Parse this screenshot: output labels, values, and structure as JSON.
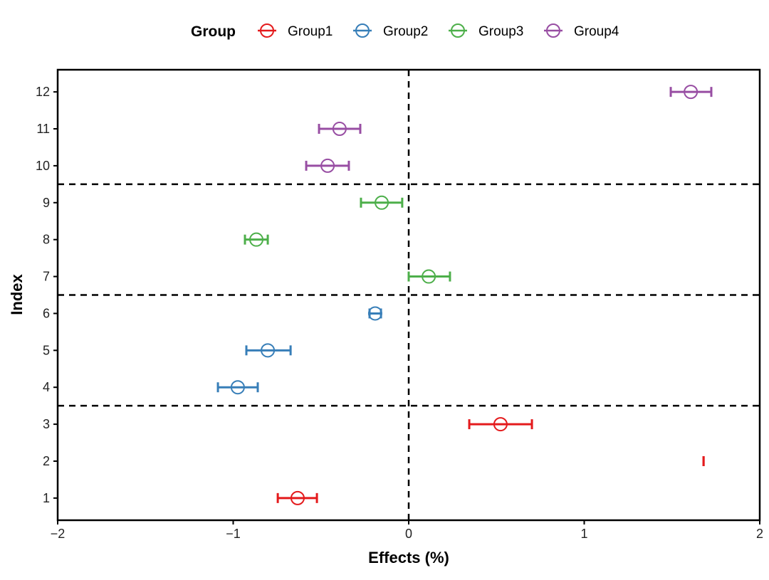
{
  "chart_data": {
    "type": "scatter",
    "subtype": "point-range / forest plot",
    "xlabel": "Effects (%)",
    "ylabel": "Index",
    "xlim": [
      -2,
      2
    ],
    "ylim": [
      0.4,
      12.6
    ],
    "xticks": [
      "−2",
      "−1",
      "0",
      "1",
      "2"
    ],
    "xtick_values": [
      -2,
      -1,
      0,
      1,
      2
    ],
    "yticks": [
      "1",
      "2",
      "3",
      "4",
      "5",
      "6",
      "7",
      "8",
      "9",
      "10",
      "11",
      "12"
    ],
    "grid": false,
    "reference_lines": {
      "vertical_x": [
        0
      ],
      "horizontal_y": [
        3.5,
        6.5,
        9.5
      ],
      "style": "dashed",
      "color": "#000000"
    },
    "legend": {
      "title": "Group",
      "position": "top"
    },
    "series": [
      {
        "name": "Group1",
        "color": "#E41A1C",
        "points": [
          {
            "index": 1,
            "estimate": -0.633,
            "lower": -0.746,
            "upper": -0.523
          },
          {
            "index": 2,
            "estimate": null,
            "lower": 1.68,
            "upper": 1.68
          },
          {
            "index": 3,
            "estimate": 0.523,
            "lower": 0.345,
            "upper": 0.702
          }
        ]
      },
      {
        "name": "Group2",
        "color": "#377EB8",
        "points": [
          {
            "index": 4,
            "estimate": -0.974,
            "lower": -1.087,
            "upper": -0.86
          },
          {
            "index": 5,
            "estimate": -0.803,
            "lower": -0.925,
            "upper": -0.673
          },
          {
            "index": 6,
            "estimate": -0.191,
            "lower": -0.223,
            "upper": -0.158
          }
        ]
      },
      {
        "name": "Group3",
        "color": "#4DAF4A",
        "points": [
          {
            "index": 7,
            "estimate": 0.114,
            "lower": 0.0,
            "upper": 0.235
          },
          {
            "index": 8,
            "estimate": -0.868,
            "lower": -0.933,
            "upper": -0.803
          },
          {
            "index": 9,
            "estimate": -0.154,
            "lower": -0.272,
            "upper": -0.037
          }
        ]
      },
      {
        "name": "Group4",
        "color": "#984EA3",
        "points": [
          {
            "index": 10,
            "estimate": -0.462,
            "lower": -0.584,
            "upper": -0.341
          },
          {
            "index": 11,
            "estimate": -0.394,
            "lower": -0.511,
            "upper": -0.276
          },
          {
            "index": 12,
            "estimate": 1.607,
            "lower": 1.493,
            "upper": 1.724
          }
        ]
      }
    ]
  }
}
